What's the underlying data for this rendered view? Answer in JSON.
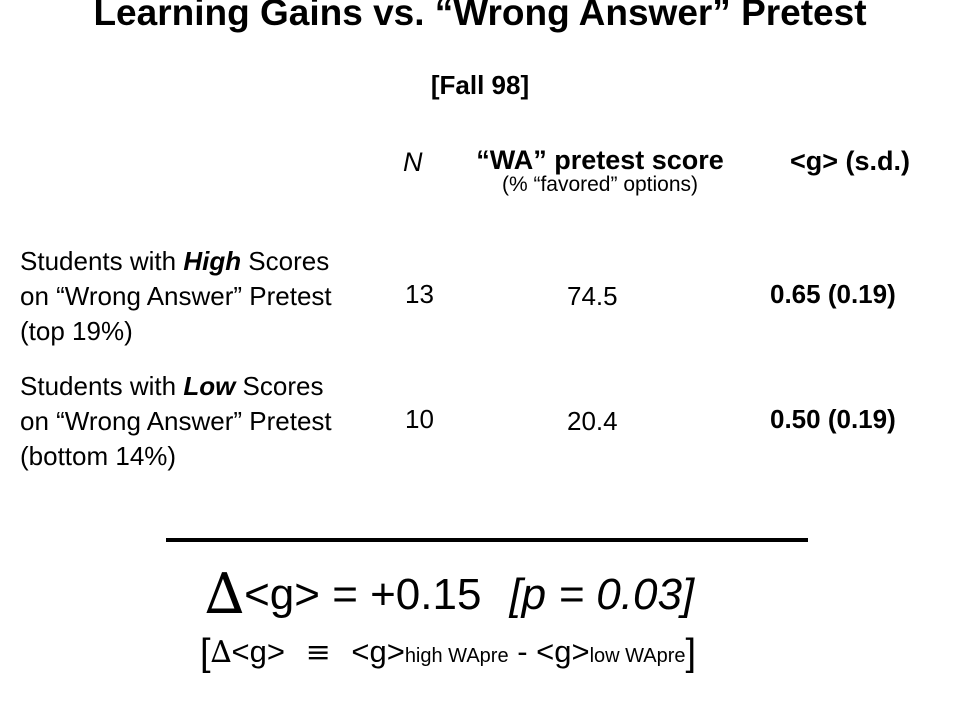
{
  "title": "Learning Gains vs. “Wrong Answer” Pretest",
  "subtitle": "[Fall 98]",
  "headers": {
    "n": "N",
    "wa_line1": "“WA” pretest score",
    "wa_line2": "(% “favored” options)",
    "gain": "<g> (s.d.)"
  },
  "rows": [
    {
      "label_pre": "Students with ",
      "label_em": "High",
      "label_post": " Scores",
      "label_line2": "on “Wrong Answer” Pretest",
      "label_line3": "(top 19%)",
      "n": "13",
      "wa_score": "74.5",
      "gain": "0.65  (0.19)"
    },
    {
      "label_pre": "Students with ",
      "label_em": "Low",
      "label_post": " Scores",
      "label_line2": "on “Wrong Answer” Pretest",
      "label_line3": "(bottom 14%)",
      "n": "10",
      "wa_score": "20.4",
      "gain": "0.50  (0.19)"
    }
  ],
  "result": {
    "delta_symbol": "∆",
    "equation": "<g> = +0.15",
    "p_value": "[p = 0.03]"
  },
  "definition": {
    "open": "[",
    "delta_symbol": "∆",
    "g1": "<g>",
    "equiv": "≡",
    "g2": "<g>",
    "sub1": "high WApre",
    "minus": "-",
    "g3": "<g>",
    "sub2": "low WApre",
    "close": "]"
  }
}
